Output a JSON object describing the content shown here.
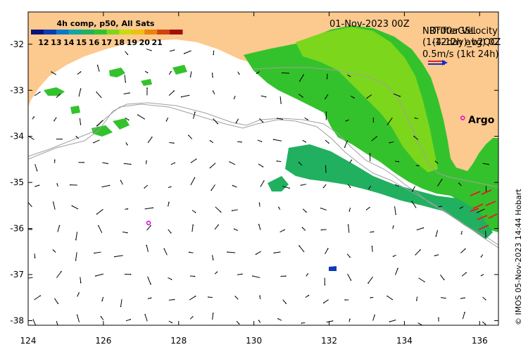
{
  "colorbar": {
    "title": "4h comp, p50, All Sats",
    "ticks": [
      "12",
      "13",
      "14",
      "15",
      "16",
      "17",
      "18",
      "19",
      "20",
      "21"
    ],
    "colors": [
      "#08127a",
      "#0a3cb3",
      "#0a78c8",
      "#10a8a0",
      "#20b060",
      "#34c22c",
      "#7cd61c",
      "#c8dc10",
      "#f0c010",
      "#e88410",
      "#d04010",
      "#a01008"
    ]
  },
  "header": {
    "date": "01-Nov-2023 00Z",
    "product_line1": "NRT00aGSL",
    "product_line2": "(1-12day)_b2QC",
    "overlay_line1": "Drifter Velocity",
    "overlay_line2": "(4-12h avg) 0Z",
    "scale_label": "0.5m/s (1kt 24h)"
  },
  "labels": {
    "argo": "Argo",
    "credit": "© IMOS 05-Nov-2023 14:44 Hobart"
  },
  "axes": {
    "x_ticks": [
      "124",
      "126",
      "128",
      "130",
      "132",
      "134",
      "136"
    ],
    "x_values": [
      124,
      126,
      128,
      130,
      132,
      134,
      136
    ],
    "y_ticks": [
      "-32",
      "-33",
      "-34",
      "-35",
      "-36",
      "-37",
      "-38"
    ],
    "y_values": [
      -32,
      -33,
      -34,
      -35,
      -36,
      -37,
      -38
    ],
    "lon_range": [
      124,
      136.5
    ],
    "lat_range": [
      -38.1,
      -31.3
    ]
  },
  "colors": {
    "land": "#fcc98e",
    "ocean": "#ffffff",
    "arrow": "#000000",
    "drifter": "#e02020",
    "argo": "#e000e0",
    "contour": "#a0a0a0"
  },
  "argo_floats": [
    {
      "lon": 135.55,
      "lat": -33.6
    },
    {
      "lon": 127.2,
      "lat": -35.88
    }
  ]
}
